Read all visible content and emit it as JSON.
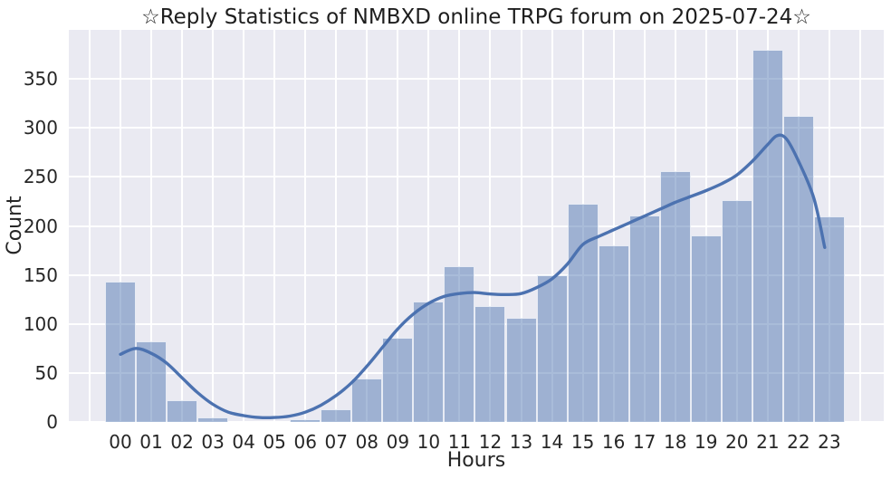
{
  "chart_data": {
    "type": "bar",
    "title": "☆Reply Statistics of NMBXD online TRPG forum on 2025-07-24☆",
    "xlabel": "Hours",
    "ylabel": "Count",
    "categories": [
      "00",
      "01",
      "02",
      "03",
      "04",
      "05",
      "06",
      "07",
      "08",
      "09",
      "10",
      "11",
      "12",
      "13",
      "14",
      "15",
      "16",
      "17",
      "18",
      "19",
      "20",
      "21",
      "22",
      "23"
    ],
    "values": [
      143,
      82,
      22,
      5,
      0,
      0,
      3,
      13,
      44,
      86,
      123,
      159,
      118,
      106,
      150,
      223,
      180,
      211,
      256,
      190,
      226,
      380,
      312,
      210
    ],
    "yticks": [
      0,
      50,
      100,
      150,
      200,
      250,
      300,
      350
    ],
    "ylim": [
      0,
      400
    ],
    "grid": true,
    "legend_position": "none",
    "kde_overlay": {
      "points": [
        [
          0,
          69
        ],
        [
          0.5,
          75
        ],
        [
          1,
          70
        ],
        [
          1.5,
          60
        ],
        [
          2,
          45
        ],
        [
          2.5,
          30
        ],
        [
          3,
          18
        ],
        [
          3.5,
          10
        ],
        [
          4,
          6.5
        ],
        [
          4.5,
          4.5
        ],
        [
          5,
          4.5
        ],
        [
          5.5,
          6
        ],
        [
          6,
          10
        ],
        [
          6.5,
          17
        ],
        [
          7,
          27
        ],
        [
          7.5,
          40
        ],
        [
          8,
          57
        ],
        [
          8.5,
          76
        ],
        [
          9,
          95
        ],
        [
          9.5,
          110
        ],
        [
          10,
          121
        ],
        [
          10.5,
          128
        ],
        [
          11,
          131
        ],
        [
          11.5,
          132
        ],
        [
          12,
          130.5
        ],
        [
          12.5,
          130
        ],
        [
          13,
          131
        ],
        [
          13.5,
          137
        ],
        [
          14,
          146
        ],
        [
          14.5,
          161
        ],
        [
          15,
          181
        ],
        [
          15.5,
          189
        ],
        [
          16,
          196
        ],
        [
          16.5,
          203
        ],
        [
          17,
          210
        ],
        [
          17.5,
          217
        ],
        [
          18,
          224
        ],
        [
          18.5,
          230
        ],
        [
          19,
          236
        ],
        [
          19.5,
          243
        ],
        [
          20,
          252
        ],
        [
          20.5,
          266
        ],
        [
          21,
          283
        ],
        [
          21.3,
          292
        ],
        [
          21.6,
          289
        ],
        [
          22,
          266
        ],
        [
          22.5,
          228
        ],
        [
          22.85,
          178
        ]
      ]
    },
    "colors": {
      "plot_background": "#eaeaf2",
      "grid": "#ffffff",
      "bar_fill": "rgba(76,114,176,0.48)",
      "bar_edge": "rgba(255,255,255,0.75)",
      "kde_line": "#4c72b0",
      "text": "#262626"
    }
  }
}
